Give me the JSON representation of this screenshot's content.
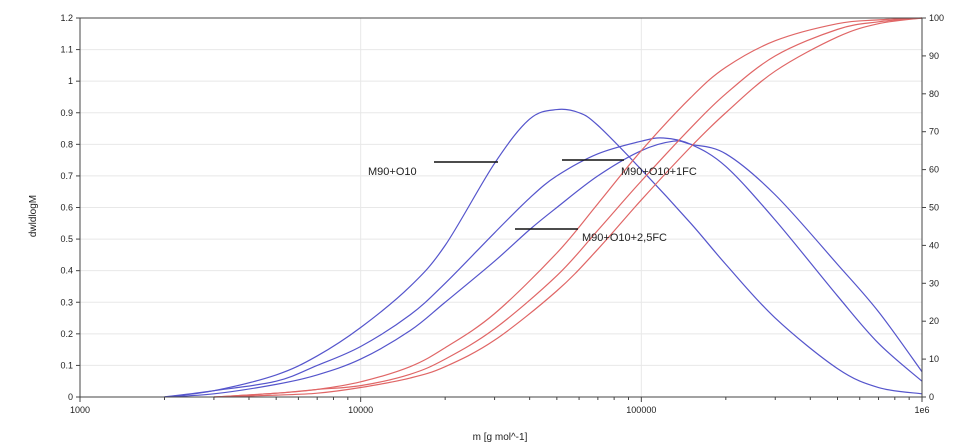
{
  "chart_data": {
    "type": "line",
    "title": "",
    "xlabel": "m [g mol^-1]",
    "ylabel": "dwldlogM",
    "xscale": "log",
    "xlim": [
      1000,
      1000000
    ],
    "ylim": [
      0,
      1.2
    ],
    "y2lim": [
      0,
      100
    ],
    "x_tick_labels": [
      "1000",
      "10000",
      "100000",
      "1e6"
    ],
    "y_tick_labels": [
      "0",
      "0.1",
      "0.2",
      "0.3",
      "0.4",
      "0.5",
      "0.6",
      "0.7",
      "0.8",
      "0.9",
      "1",
      "1.1",
      "1.2"
    ],
    "y2_tick_labels": [
      "0",
      "10",
      "20",
      "30",
      "40",
      "50",
      "60",
      "70",
      "80",
      "90",
      "100"
    ],
    "grid": true,
    "colors": {
      "differential": "#5555cc",
      "cumulative": "#e06666"
    },
    "annotations": [
      {
        "text": "M90+O10",
        "x": 30000,
        "y": 0.73
      },
      {
        "text": "M90+O10+1FC",
        "x": 52000,
        "y": 0.75
      },
      {
        "text": "M90+O10+2,5FC",
        "x": 35000,
        "y": 0.53
      }
    ],
    "series": [
      {
        "axis": "left",
        "x": [
          2000,
          3000,
          5000,
          7000,
          10000,
          15000,
          20000,
          30000,
          40000,
          50000,
          60000,
          70000,
          100000,
          150000,
          200000,
          300000,
          500000,
          700000,
          1000000
        ],
        "y": [
          0.0,
          0.02,
          0.07,
          0.13,
          0.22,
          0.35,
          0.48,
          0.74,
          0.88,
          0.91,
          0.9,
          0.86,
          0.72,
          0.55,
          0.42,
          0.25,
          0.09,
          0.03,
          0.01
        ]
      },
      {
        "axis": "left",
        "x": [
          2000,
          3000,
          5000,
          7000,
          10000,
          15000,
          20000,
          30000,
          40000,
          50000,
          70000,
          100000,
          120000,
          150000,
          200000,
          300000,
          500000,
          700000,
          1000000
        ],
        "y": [
          0.0,
          0.02,
          0.05,
          0.1,
          0.16,
          0.26,
          0.36,
          0.52,
          0.63,
          0.7,
          0.77,
          0.81,
          0.82,
          0.8,
          0.73,
          0.56,
          0.32,
          0.17,
          0.05
        ]
      },
      {
        "axis": "left",
        "x": [
          2000,
          3000,
          5000,
          7000,
          10000,
          15000,
          20000,
          30000,
          40000,
          50000,
          70000,
          100000,
          130000,
          150000,
          200000,
          300000,
          500000,
          700000,
          1000000
        ],
        "y": [
          0.0,
          0.01,
          0.04,
          0.07,
          0.12,
          0.21,
          0.3,
          0.43,
          0.53,
          0.6,
          0.7,
          0.78,
          0.81,
          0.8,
          0.77,
          0.64,
          0.42,
          0.27,
          0.08
        ]
      },
      {
        "axis": "right",
        "x": [
          3000,
          5000,
          7000,
          10000,
          15000,
          20000,
          30000,
          50000,
          70000,
          100000,
          150000,
          200000,
          300000,
          500000,
          700000,
          1000000
        ],
        "y": [
          0,
          1,
          2,
          4,
          8,
          13,
          22,
          38,
          51,
          65,
          79,
          87,
          94,
          98.5,
          99.5,
          100
        ]
      },
      {
        "axis": "right",
        "x": [
          3000,
          5000,
          7000,
          10000,
          15000,
          20000,
          30000,
          50000,
          70000,
          100000,
          150000,
          200000,
          300000,
          500000,
          700000,
          1000000
        ],
        "y": [
          0,
          1,
          2,
          3,
          6,
          10,
          18,
          32,
          44,
          57,
          71,
          80,
          90,
          97,
          99,
          100
        ]
      },
      {
        "axis": "right",
        "x": [
          3000,
          5000,
          7000,
          10000,
          15000,
          20000,
          30000,
          50000,
          70000,
          100000,
          150000,
          200000,
          300000,
          500000,
          700000,
          1000000
        ],
        "y": [
          0,
          0.5,
          1,
          2.5,
          5,
          8,
          15,
          28,
          39,
          52,
          66,
          75,
          86,
          95,
          98.5,
          100
        ]
      }
    ]
  }
}
